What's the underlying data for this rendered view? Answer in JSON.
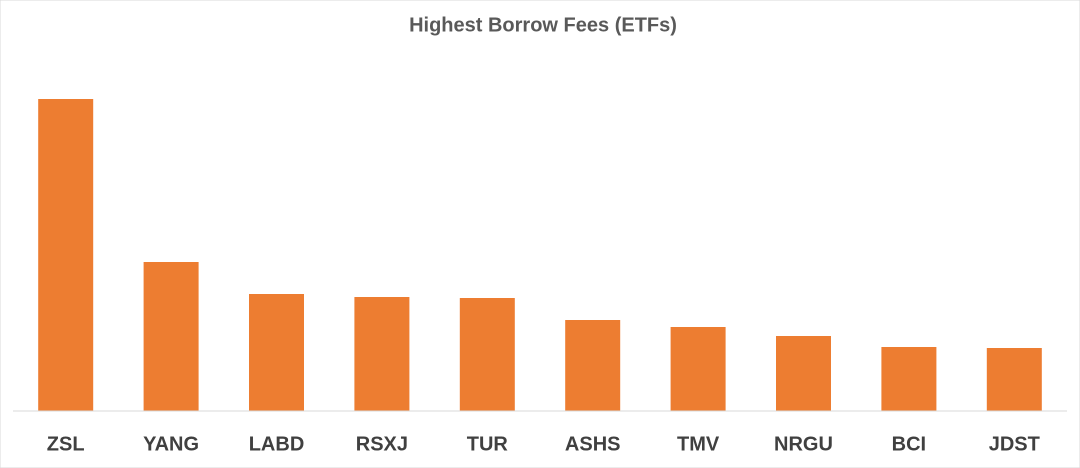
{
  "chart_data": {
    "type": "bar",
    "title": "Highest Borrow Fees (ETFs)",
    "categories": [
      "ZSL",
      "YANG",
      "LABD",
      "RSXJ",
      "TUR",
      "ASHS",
      "TMV",
      "NRGU",
      "BCI",
      "JDST"
    ],
    "values": [
      312,
      149,
      117,
      114,
      113,
      91,
      84,
      75,
      64,
      63
    ],
    "color": "#ed7d31"
  }
}
